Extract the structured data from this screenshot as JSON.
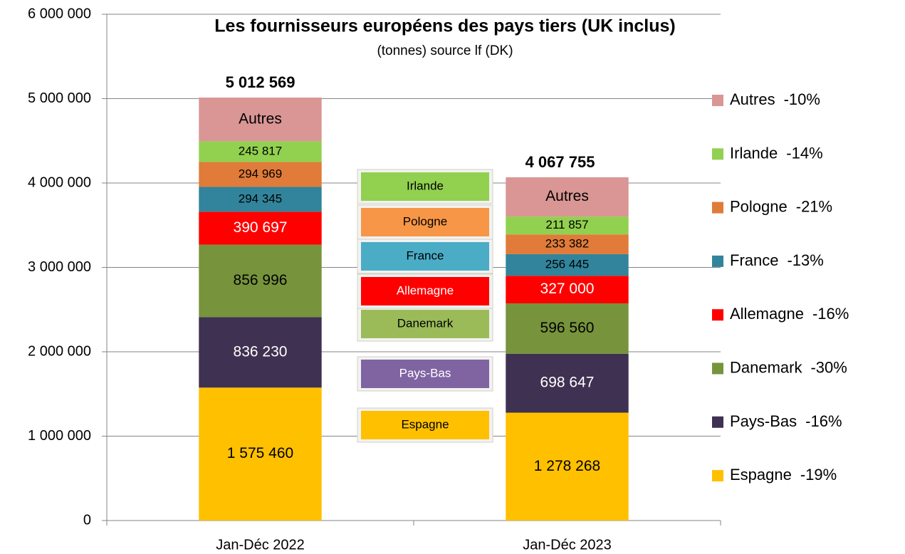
{
  "chart_data": {
    "type": "stacked_bar",
    "title": "Les fournisseurs européens des pays tiers (UK inclus)",
    "subtitle": "(tonnes) source lf (DK)",
    "categories": [
      "Jan-Déc 2022",
      "Jan-Déc 2023"
    ],
    "series": [
      {
        "name": "Espagne",
        "change": "-19%",
        "color": "#ffc000",
        "box_color": "#ffc000",
        "label_color": "#000000",
        "values": [
          1575460,
          1278268
        ],
        "value_labels": [
          "1 575 460",
          "1 278 268"
        ]
      },
      {
        "name": "Pays-Bas",
        "change": "-16%",
        "color": "#3f3151",
        "box_color": "#8064a2",
        "label_color": "#ffffff",
        "values": [
          836230,
          698647
        ],
        "value_labels": [
          "836 230",
          "698 647"
        ]
      },
      {
        "name": "Danemark",
        "change": "-30%",
        "color": "#77933c",
        "box_color": "#9bbb59",
        "label_color": "#000000",
        "values": [
          856996,
          596560
        ],
        "value_labels": [
          "856 996",
          "596 560"
        ]
      },
      {
        "name": "Allemagne",
        "change": "-16%",
        "color": "#ff0000",
        "box_color": "#ff0000",
        "label_color": "#ffffff",
        "values": [
          390697,
          327000
        ],
        "value_labels": [
          "390 697",
          "327 000"
        ]
      },
      {
        "name": "France",
        "change": "-13%",
        "color": "#31849b",
        "box_color": "#4bacc6",
        "label_color": "#000000",
        "values": [
          294345,
          256445
        ],
        "value_labels": [
          "294 345",
          "256 445"
        ]
      },
      {
        "name": "Pologne",
        "change": "-21%",
        "color": "#e07b39",
        "box_color": "#f79646",
        "label_color": "#000000",
        "values": [
          294969,
          233382
        ],
        "value_labels": [
          "294 969",
          "233 382"
        ]
      },
      {
        "name": "Irlande",
        "change": "-14%",
        "color": "#92d050",
        "box_color": "#92d050",
        "label_color": "#000000",
        "values": [
          245817,
          211857
        ],
        "value_labels": [
          "245 817",
          "211 857"
        ]
      },
      {
        "name": "Autres",
        "change": "-10%",
        "color": "#d99694",
        "label_color": "#000000",
        "values": [
          518055,
          465596
        ]
      }
    ],
    "totals": [
      5012569,
      4067755
    ],
    "total_labels": [
      "5 012 569",
      "4 067 755"
    ],
    "ylim": [
      0,
      6000000
    ],
    "yticks": [
      {
        "value": 0,
        "label": "0"
      },
      {
        "value": 1000000,
        "label": "1 000 000"
      },
      {
        "value": 2000000,
        "label": "2 000 000"
      },
      {
        "value": 3000000,
        "label": "3 000 000"
      },
      {
        "value": 4000000,
        "label": "4 000 000"
      },
      {
        "value": 5000000,
        "label": "5 000 000"
      },
      {
        "value": 6000000,
        "label": "6 000 000"
      }
    ],
    "grid": true,
    "legend": "right"
  }
}
